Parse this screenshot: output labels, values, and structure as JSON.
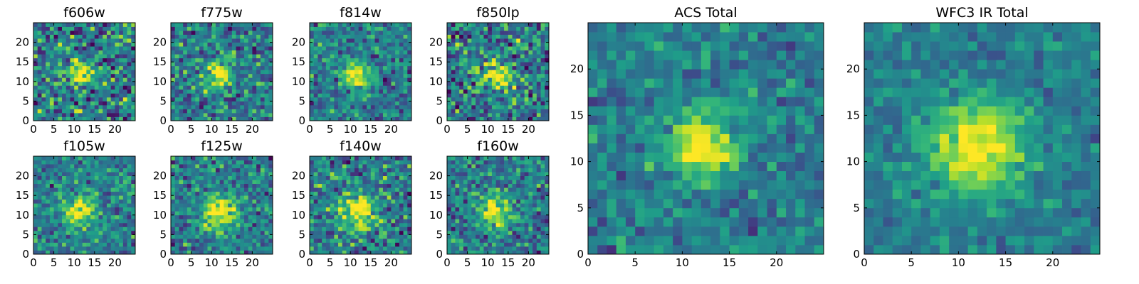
{
  "chart_data": [
    {
      "type": "heatmap",
      "title": "f606w",
      "xlim": [
        0,
        25
      ],
      "ylim": [
        0,
        25
      ],
      "xticks": [
        "0",
        "5",
        "10",
        "15",
        "20"
      ],
      "yticks": [
        "0",
        "5",
        "10",
        "15",
        "20"
      ],
      "source_center": [
        11.5,
        11.5
      ],
      "peak_sigma": 2.2,
      "noise_level": 0.3,
      "colormap": "viridis"
    },
    {
      "type": "heatmap",
      "title": "f775w",
      "xlim": [
        0,
        25
      ],
      "ylim": [
        0,
        25
      ],
      "xticks": [
        "0",
        "5",
        "10",
        "15",
        "20"
      ],
      "yticks": [
        "0",
        "5",
        "10",
        "15",
        "20"
      ],
      "source_center": [
        11.5,
        11.5
      ],
      "peak_sigma": 2.5,
      "noise_level": 0.25,
      "colormap": "viridis"
    },
    {
      "type": "heatmap",
      "title": "f814w",
      "xlim": [
        0,
        25
      ],
      "ylim": [
        0,
        25
      ],
      "xticks": [
        "0",
        "5",
        "10",
        "15",
        "20"
      ],
      "yticks": [
        "0",
        "5",
        "10",
        "15",
        "20"
      ],
      "source_center": [
        11.5,
        11.5
      ],
      "peak_sigma": 2.3,
      "noise_level": 0.22,
      "colormap": "viridis"
    },
    {
      "type": "heatmap",
      "title": "f850lp",
      "xlim": [
        0,
        25
      ],
      "ylim": [
        0,
        25
      ],
      "xticks": [
        "0",
        "5",
        "10",
        "15",
        "20"
      ],
      "yticks": [
        "0",
        "5",
        "10",
        "15",
        "20"
      ],
      "source_center": [
        12.5,
        11.5
      ],
      "peak_sigma": 2.6,
      "noise_level": 0.3,
      "colormap": "viridis"
    },
    {
      "type": "heatmap",
      "title": "f105w",
      "xlim": [
        0,
        25
      ],
      "ylim": [
        0,
        25
      ],
      "xticks": [
        "0",
        "5",
        "10",
        "15",
        "20"
      ],
      "yticks": [
        "0",
        "5",
        "10",
        "15",
        "20"
      ],
      "source_center": [
        11.5,
        11.0
      ],
      "peak_sigma": 3.0,
      "noise_level": 0.2,
      "colormap": "viridis"
    },
    {
      "type": "heatmap",
      "title": "f125w",
      "xlim": [
        0,
        25
      ],
      "ylim": [
        0,
        25
      ],
      "xticks": [
        "0",
        "5",
        "10",
        "15",
        "20"
      ],
      "yticks": [
        "0",
        "5",
        "10",
        "15",
        "20"
      ],
      "source_center": [
        12.0,
        11.0
      ],
      "peak_sigma": 3.2,
      "noise_level": 0.22,
      "colormap": "viridis"
    },
    {
      "type": "heatmap",
      "title": "f140w",
      "xlim": [
        0,
        25
      ],
      "ylim": [
        0,
        25
      ],
      "xticks": [
        "0",
        "5",
        "10",
        "15",
        "20"
      ],
      "yticks": [
        "0",
        "5",
        "10",
        "15",
        "20"
      ],
      "source_center": [
        12.0,
        11.0
      ],
      "peak_sigma": 3.4,
      "noise_level": 0.25,
      "colormap": "viridis"
    },
    {
      "type": "heatmap",
      "title": "f160w",
      "xlim": [
        0,
        25
      ],
      "ylim": [
        0,
        25
      ],
      "xticks": [
        "0",
        "5",
        "10",
        "15",
        "20"
      ],
      "yticks": [
        "0",
        "5",
        "10",
        "15",
        "20"
      ],
      "source_center": [
        11.5,
        11.0
      ],
      "peak_sigma": 2.8,
      "noise_level": 0.22,
      "colormap": "viridis"
    },
    {
      "type": "heatmap",
      "title": "ACS Total",
      "xlim": [
        0,
        25
      ],
      "ylim": [
        0,
        25
      ],
      "xticks": [
        "0",
        "5",
        "10",
        "15",
        "20"
      ],
      "yticks": [
        "0",
        "5",
        "10",
        "15",
        "20"
      ],
      "source_center": [
        12.0,
        11.5
      ],
      "peak_sigma": 2.6,
      "noise_level": 0.16,
      "colormap": "viridis"
    },
    {
      "type": "heatmap",
      "title": "WFC3 IR Total",
      "xlim": [
        0,
        25
      ],
      "ylim": [
        0,
        25
      ],
      "xticks": [
        "0",
        "5",
        "10",
        "15",
        "20"
      ],
      "yticks": [
        "0",
        "5",
        "10",
        "15",
        "20"
      ],
      "source_center": [
        12.0,
        11.5
      ],
      "peak_sigma": 3.6,
      "noise_level": 0.12,
      "colormap": "viridis"
    }
  ]
}
